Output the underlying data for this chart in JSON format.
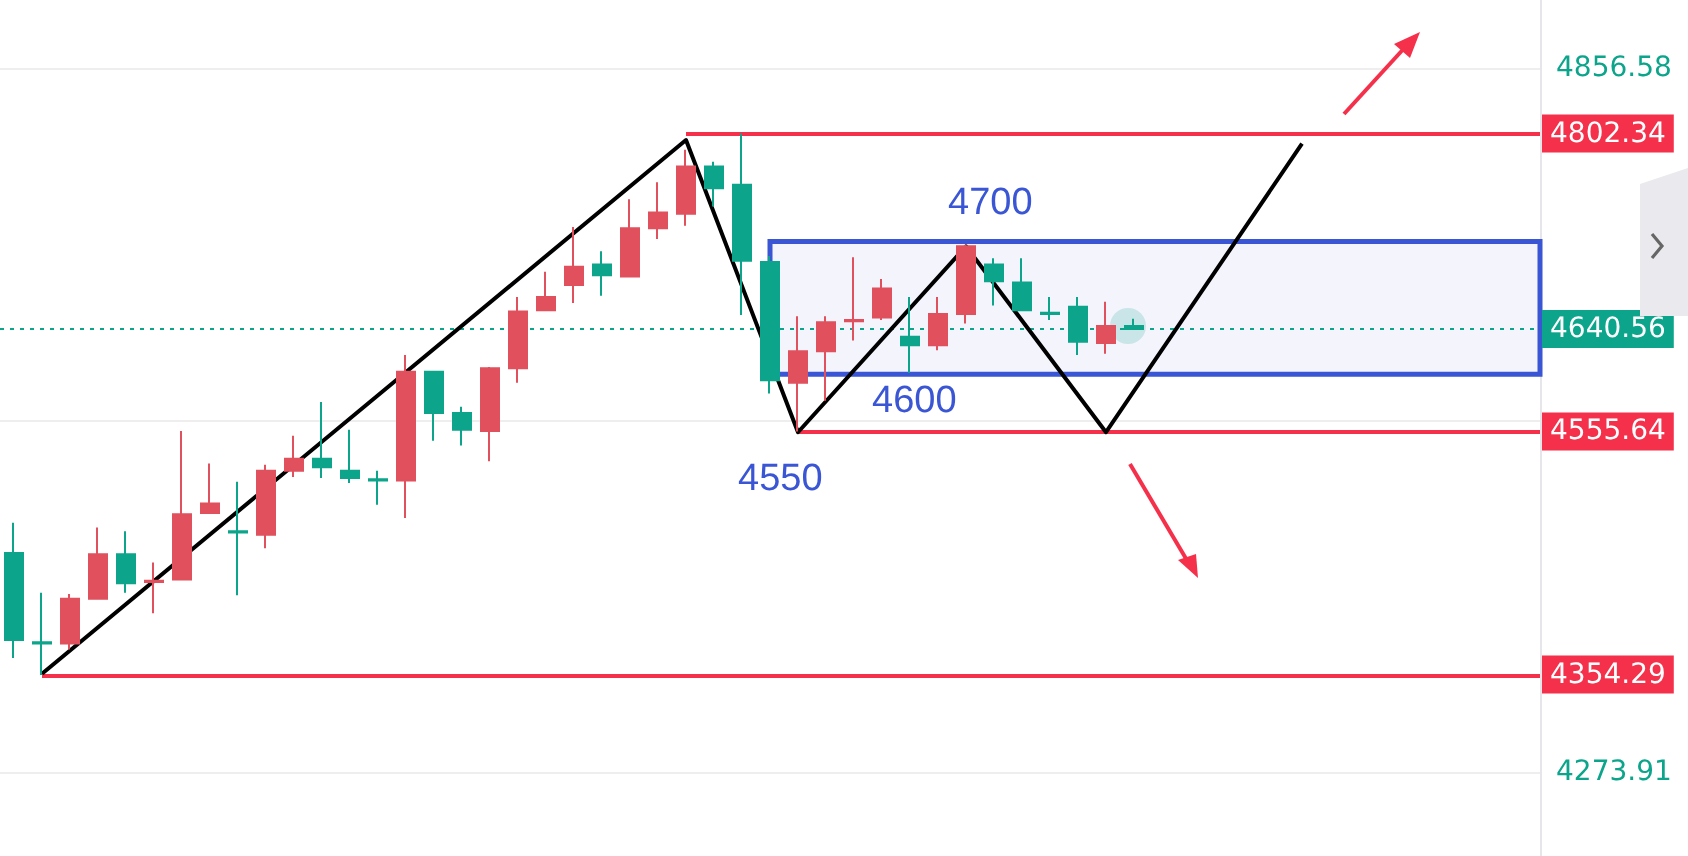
{
  "chart_data": {
    "type": "candlestick",
    "categories": [
      null,
      null,
      null,
      null,
      null,
      null,
      null,
      null,
      null,
      null,
      null,
      null,
      null,
      null,
      null,
      null,
      null,
      null,
      null,
      null,
      null,
      null,
      null,
      null,
      null,
      null,
      null,
      null,
      null,
      null,
      null,
      null,
      null,
      null,
      null,
      null,
      null,
      null,
      null,
      null,
      null,
      null,
      null,
      null,
      null,
      null,
      null,
      null,
      null,
      null,
      null,
      null,
      null,
      null,
      null
    ],
    "ohlc": [
      [
        4455,
        4480,
        4368,
        4383
      ],
      [
        4381,
        4422,
        4354,
        4380
      ],
      [
        4380,
        4421,
        4375,
        4417
      ],
      [
        4417,
        4476,
        4417,
        4454
      ],
      [
        4454,
        4473,
        4422,
        4430
      ],
      [
        4431,
        4447,
        4405,
        4432
      ],
      [
        4433,
        4556,
        4433,
        4487
      ],
      [
        4488,
        4529,
        4488,
        4496
      ],
      [
        4473,
        4514,
        4420,
        4472
      ],
      [
        4470,
        4528,
        4459,
        4523
      ],
      [
        4523,
        4552,
        4518,
        4533
      ],
      [
        4533,
        4580,
        4517,
        4526
      ],
      [
        4523,
        4557,
        4513,
        4517
      ],
      [
        4516,
        4523,
        4495,
        4515
      ],
      [
        4515,
        4619,
        4484,
        4605
      ],
      [
        4605,
        4606,
        4548,
        4571
      ],
      [
        4571,
        4576,
        4544,
        4557
      ],
      [
        4556,
        4609,
        4531,
        4608
      ],
      [
        4608,
        4667,
        4596,
        4655
      ],
      [
        4656,
        4688,
        4656,
        4667
      ],
      [
        4677,
        4725,
        4662,
        4692
      ],
      [
        4694,
        4705,
        4668,
        4685
      ],
      [
        4684,
        4748,
        4684,
        4724
      ],
      [
        4724,
        4762,
        4715,
        4737
      ],
      [
        4736,
        4789,
        4726,
        4775
      ],
      [
        4775,
        4779,
        4742,
        4757
      ],
      [
        4760,
        4802.34,
        4652,
        4697
      ],
      [
        4696,
        4701,
        4587,
        4598
      ],
      [
        4596,
        4651,
        4555.64,
        4622
      ],
      [
        4622,
        4651,
        4581,
        4646
      ],
      [
        4647,
        4700,
        4631,
        4648
      ],
      [
        4650,
        4682,
        4648,
        4674
      ],
      [
        4634,
        4667,
        4604,
        4627
      ],
      [
        4627,
        4667,
        4623,
        4653
      ],
      [
        4653,
        4710,
        4645,
        4709
      ],
      [
        4694,
        4699,
        4660,
        4680
      ],
      [
        4679,
        4699,
        4656,
        4656
      ],
      [
        4654,
        4667,
        4648,
        4653
      ],
      [
        4659,
        4667,
        4619,
        4630
      ],
      [
        4629,
        4663,
        4620,
        4643
      ],
      [
        4643,
        4649,
        4640,
        4640.56
      ],
      null,
      null,
      null,
      null,
      null,
      null,
      null,
      null,
      null,
      null,
      null,
      null,
      null,
      null
    ],
    "colors": [
      "#0ca58b",
      "#0ca58b",
      "#e0505d",
      "#e0505d",
      "#0ca58b",
      "#e0505d",
      "#e0505d",
      "#e0505d",
      "#0ca58b",
      "#e0505d",
      "#e0505d",
      "#0ca58b",
      "#0ca58b",
      "#0ca58b",
      "#e0505d",
      "#0ca58b",
      "#0ca58b",
      "#e0505d",
      "#e0505d",
      "#e0505d",
      "#e0505d",
      "#0ca58b",
      "#e0505d",
      "#e0505d",
      "#e0505d",
      "#0ca58b",
      "#0ca58b",
      "#0ca58b",
      "#e0505d",
      "#e0505d",
      "#e0505d",
      "#e0505d",
      "#0ca58b",
      "#e0505d",
      "#e0505d",
      "#0ca58b",
      "#0ca58b",
      "#0ca58b",
      "#0ca58b",
      "#e0505d",
      "#0ca58b",
      null,
      null,
      null,
      null,
      null,
      null,
      null,
      null,
      null,
      null,
      null,
      null,
      null,
      null
    ],
    "series": [
      {
        "type": "line",
        "color": "#000000",
        "values": [
          null,
          4355,
          null,
          null,
          null,
          null,
          null,
          null,
          null,
          null,
          null,
          null,
          null,
          null,
          null,
          null,
          null,
          null,
          null,
          null,
          null,
          null,
          null,
          null,
          4797,
          null,
          null,
          null,
          4555,
          null,
          null,
          null,
          null,
          null,
          4709,
          null,
          null,
          null,
          null,
          4555,
          null,
          null,
          null,
          null,
          null,
          null,
          4794,
          null,
          null,
          null,
          null,
          null,
          null,
          null,
          null
        ]
      }
    ],
    "ylim": [
      4204,
      4913
    ],
    "yticks": [
      4856.58,
      {
        "value": 4565.25,
        "label": null
      },
      4273.91
    ],
    "grid": "y",
    "marker": "none",
    "ref_lines": [
      {
        "axis": "y",
        "value": 4802.34,
        "label": "4802.34",
        "color": "#f5304a"
      },
      {
        "axis": "y",
        "value": 4555.64,
        "label": "4555.64",
        "color": "#f5304a"
      },
      {
        "axis": "y",
        "value": 4354.29,
        "label": "4354.29",
        "color": "#f5304a"
      },
      {
        "axis": "y",
        "value": 4640.56,
        "label": "4640.56",
        "color": "#0ca58b",
        "line_style": "dotted"
      }
    ],
    "bands": [
      {
        "axis": "y",
        "from": 4603,
        "to": 4713,
        "color": "#3a56d4"
      }
    ],
    "annotations": [
      "4700",
      "4600",
      "4550"
    ]
  }
}
